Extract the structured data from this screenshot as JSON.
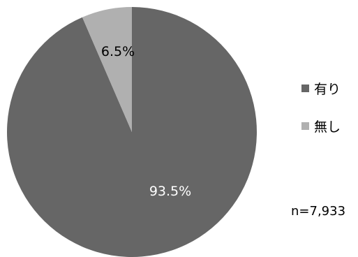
{
  "chart_data": {
    "type": "pie",
    "categories": [
      "有り",
      "無し"
    ],
    "values": [
      93.5,
      6.5
    ],
    "data_labels": [
      "93.5%",
      "6.5%"
    ],
    "colors": [
      "#666666",
      "#b0b0b0"
    ],
    "label_colors": [
      "#ffffff",
      "#000000"
    ],
    "start_angle_deg": 0,
    "direction": "counterclockwise-from-top-for-small-slice",
    "legend": {
      "placement": "right",
      "entries": [
        "有り",
        "無し"
      ]
    },
    "note": "n=7,933"
  }
}
